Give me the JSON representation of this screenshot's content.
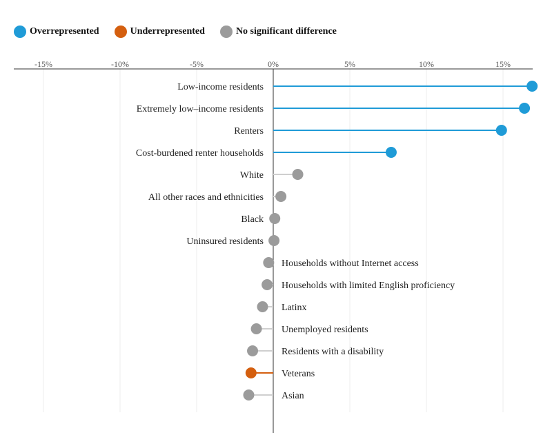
{
  "legend": {
    "over": "Overrepresented",
    "under": "Underrepresented",
    "none": "No significant difference"
  },
  "colors": {
    "over": "#1f9bd7",
    "under": "#d45f0f",
    "none": "#9b9b9b"
  },
  "chart_data": {
    "type": "lollipop",
    "xlim": [
      -16.5,
      17
    ],
    "x_ticks": [
      -15,
      -10,
      -5,
      0,
      5,
      10,
      15
    ],
    "x_tick_labels": [
      "-15%",
      "-10%",
      "-5%",
      "0%",
      "5%",
      "10%",
      "15%"
    ],
    "grid": true,
    "legend_position": "top-left",
    "categories": [
      "Low-income residents",
      "Extremely low–income residents",
      "Renters",
      "Cost-burdened renter households",
      "White",
      "All other races and ethnicities",
      "Black",
      "Uninsured residents",
      "Households without Internet access",
      "Households with limited English proficiency",
      "Latinx",
      "Unemployed residents",
      "Residents with a disability",
      "Veterans",
      "Asian"
    ],
    "values": [
      16.9,
      16.4,
      14.9,
      7.7,
      1.6,
      0.5,
      0.1,
      0.05,
      -0.3,
      -0.4,
      -0.7,
      -1.1,
      -1.35,
      -1.45,
      -1.6
    ],
    "status": [
      "over",
      "over",
      "over",
      "over",
      "none",
      "none",
      "none",
      "none",
      "none",
      "none",
      "none",
      "none",
      "none",
      "under",
      "none"
    ]
  }
}
